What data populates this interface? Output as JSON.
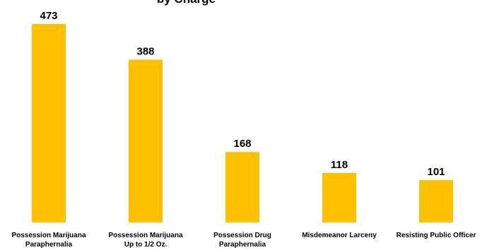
{
  "chart_data": {
    "type": "bar",
    "title": "by Charge",
    "categories": [
      [
        "Possession Marijuana",
        "Paraphernalia"
      ],
      [
        "Possession Marijuana",
        "Up to 1/2 Oz."
      ],
      [
        "Possession Drug",
        "Paraphernalia"
      ],
      [
        "Misdemeanor Larceny"
      ],
      [
        "Resisting Public Officer"
      ]
    ],
    "values": [
      473,
      388,
      168,
      118,
      101
    ],
    "value_labels": [
      "473",
      "388",
      "168",
      "118",
      "101"
    ],
    "xlabel": "",
    "ylabel": "",
    "ylim": [
      0,
      473
    ],
    "grid": false,
    "legend": "none",
    "colors": {
      "bar": "#FFC000",
      "text": "#000000",
      "background": "#FFFFFF"
    }
  }
}
